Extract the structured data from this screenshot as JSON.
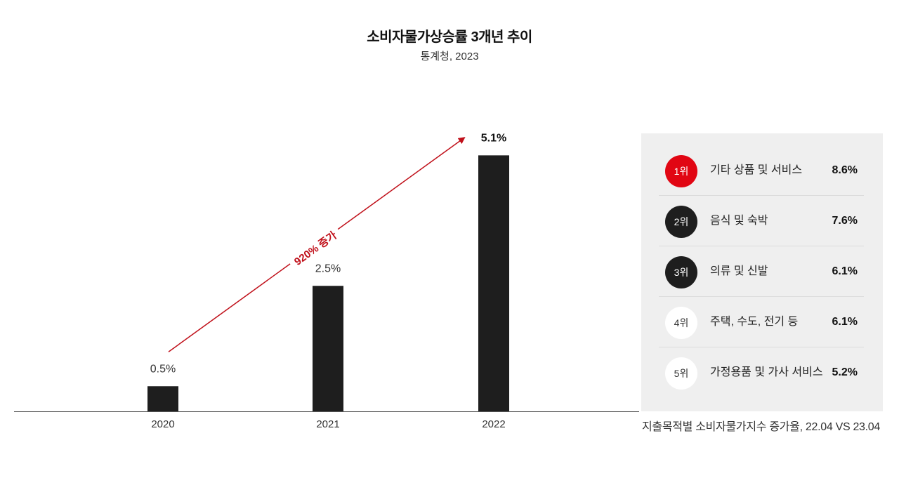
{
  "header": {
    "title": "소비자물가상승률 3개년 추이",
    "subtitle": "통계청, 2023"
  },
  "chart_data": {
    "type": "bar",
    "categories": [
      "2020",
      "2021",
      "2022"
    ],
    "values": [
      0.5,
      2.5,
      5.1
    ],
    "value_labels": [
      "0.5%",
      "2.5%",
      "5.1%"
    ],
    "ylim": [
      0,
      6
    ],
    "annotation": {
      "text": "920% 증가",
      "from": "2020",
      "to": "2022",
      "color": "#c0101a"
    },
    "bar_color": "#1e1e1e"
  },
  "ranking": {
    "note": "지출목적별 소비자물가지수 증가율, 22.04 VS 23.04",
    "items": [
      {
        "rank": "1위",
        "category": "기타 상품 및 서비스",
        "value": "8.6%"
      },
      {
        "rank": "2위",
        "category": "음식 및 숙박",
        "value": "7.6%"
      },
      {
        "rank": "3위",
        "category": "의류 및 신발",
        "value": "6.1%"
      },
      {
        "rank": "4위",
        "category": "주택, 수도, 전기 등",
        "value": "6.1%"
      },
      {
        "rank": "5위",
        "category": "가정용품 및 가사 서비스",
        "value": "5.2%"
      }
    ]
  },
  "colors": {
    "accent": "#e10613",
    "dark": "#1e1e1e",
    "panel_bg": "#efefef"
  }
}
